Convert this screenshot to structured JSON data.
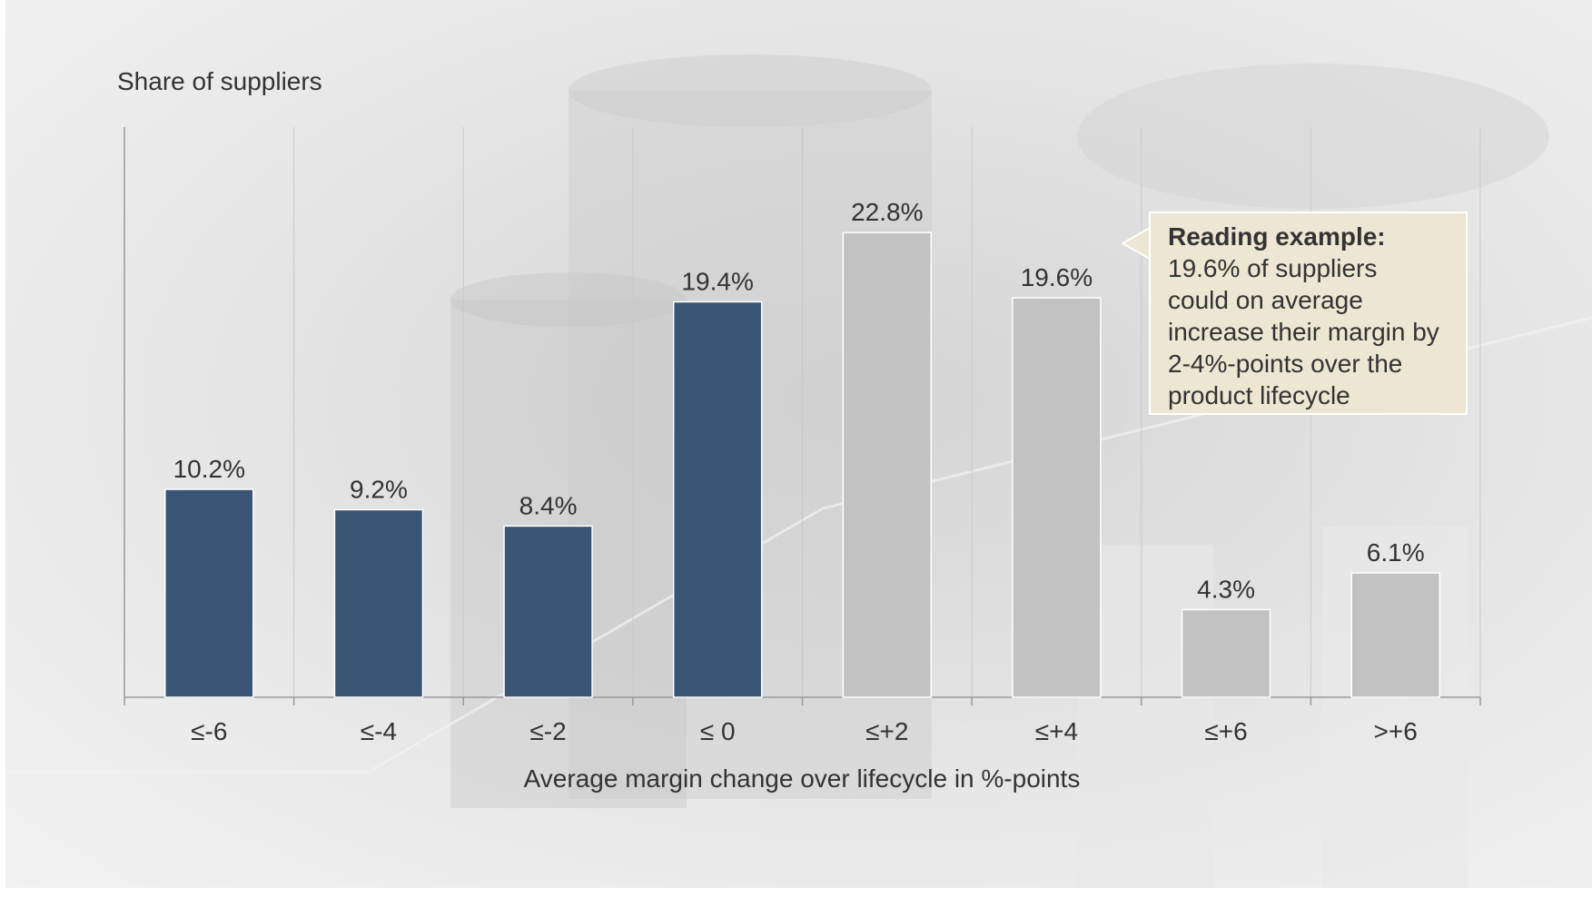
{
  "chart_data": {
    "type": "bar",
    "ylabel": "Share of suppliers",
    "xlabel": "Average margin change over lifecycle in %-points",
    "categories": [
      "≤-6",
      "≤-4",
      "≤-2",
      "≤ 0",
      "≤+2",
      "≤+4",
      "≤+6",
      ">+6"
    ],
    "values": [
      10.2,
      9.2,
      8.4,
      19.4,
      22.8,
      19.6,
      4.3,
      6.1
    ],
    "value_labels": [
      "10.2%",
      "9.2%",
      "8.4%",
      "19.4%",
      "22.8%",
      "19.6%",
      "4.3%",
      "6.1%"
    ],
    "bar_colors": [
      "#3a5473",
      "#3a5473",
      "#3a5473",
      "#3a5473",
      "#c2c2c2",
      "#c2c2c2",
      "#c2c2c2",
      "#c2c2c2"
    ],
    "ylim": [
      0,
      25
    ],
    "grid": "vertical",
    "legend": "none"
  },
  "callout": {
    "title": "Reading example:",
    "lines": [
      "19.6% of suppliers",
      "could on average",
      "increase their margin by",
      "2-4%-points over the",
      "product lifecycle"
    ],
    "background": "#ece6d2"
  }
}
